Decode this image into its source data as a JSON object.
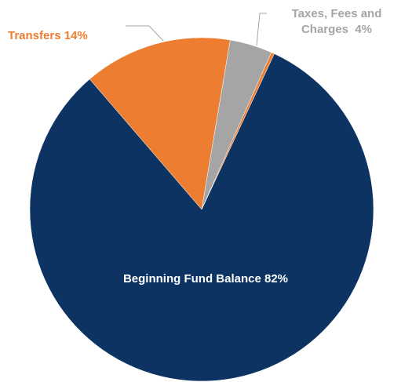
{
  "chart_data": {
    "type": "pie",
    "categories": [
      "Beginning Fund Balance",
      "Transfers",
      "Taxes, Fees and Charges",
      null
    ],
    "values": [
      82,
      14,
      4,
      0.3
    ],
    "value_labels": [
      "82%",
      "14%",
      "4%",
      null
    ],
    "colors": [
      "#0c3361",
      "#ed7d31",
      "#a5a5a5",
      "#ed7d31"
    ]
  }
}
